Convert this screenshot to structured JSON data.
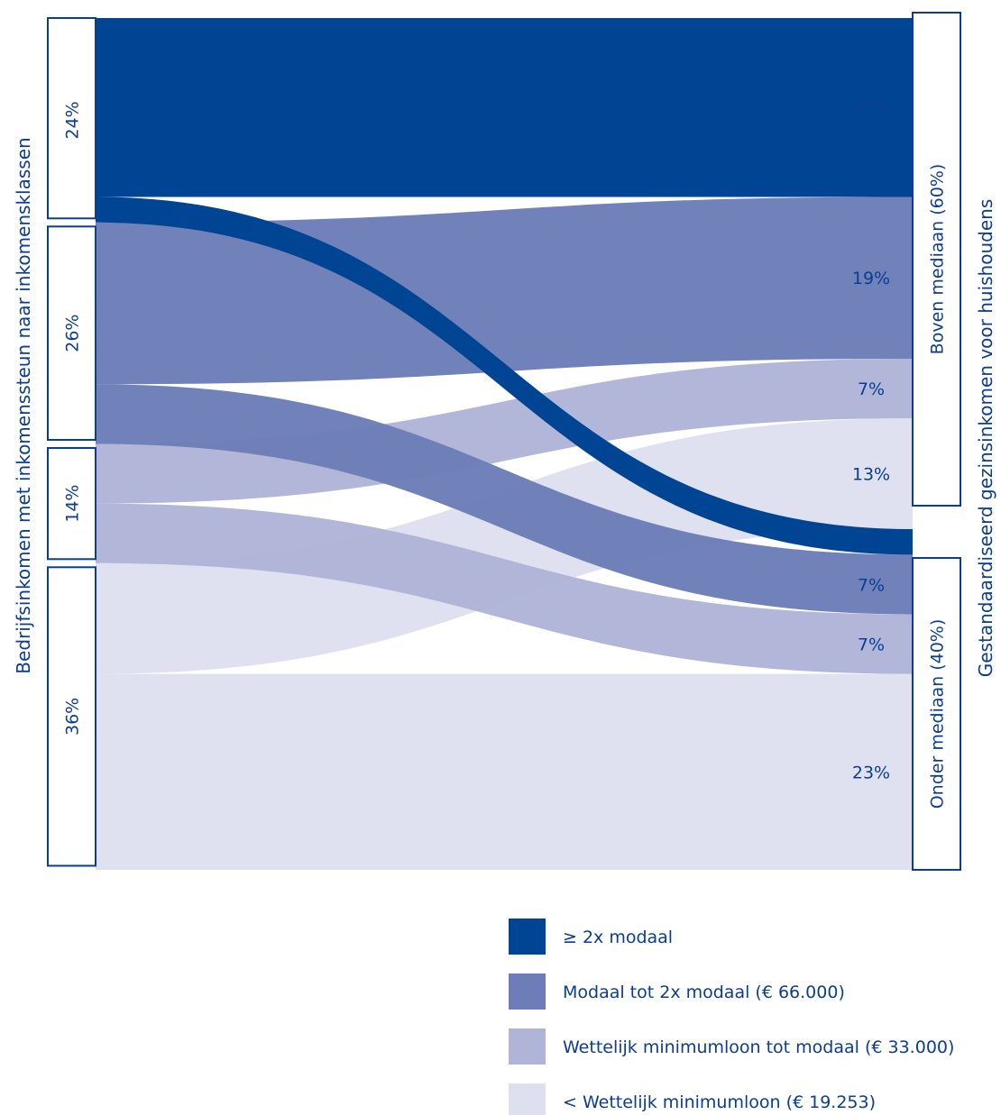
{
  "chart_data": {
    "type": "sankey",
    "left_axis_title": "Bedrijfsinkomen met inkomenssteun naar inkomensklassen",
    "right_axis_title": "Gestandaardiseerd gezinsinkomen voor huishoudens",
    "source_nodes": [
      {
        "id": "s0",
        "label": "24%",
        "value": 24
      },
      {
        "id": "s1",
        "label": "26%",
        "value": 26
      },
      {
        "id": "s2",
        "label": "14%",
        "value": 14
      },
      {
        "id": "s3",
        "label": "36%",
        "value": 36
      }
    ],
    "target_nodes": [
      {
        "id": "t0",
        "label": "Boven mediaan (60%)",
        "value": 60
      },
      {
        "id": "t1",
        "label": "Onder mediaan (40%)",
        "value": 40
      }
    ],
    "flows": [
      {
        "source": 0,
        "target": 0,
        "value": 21,
        "label": "21%",
        "color": "#004494"
      },
      {
        "source": 1,
        "target": 0,
        "value": 19,
        "label": "19%",
        "color": "#6c7db7"
      },
      {
        "source": 2,
        "target": 0,
        "value": 7,
        "label": "7%",
        "color": "#b0b5d8"
      },
      {
        "source": 3,
        "target": 0,
        "value": 13,
        "label": "13%",
        "color": "#dee0ef"
      },
      {
        "source": 0,
        "target": 1,
        "value": 3,
        "label": "3%",
        "color": "#004494"
      },
      {
        "source": 1,
        "target": 1,
        "value": 7,
        "label": "7%",
        "color": "#6c7db7"
      },
      {
        "source": 2,
        "target": 1,
        "value": 7,
        "label": "7%",
        "color": "#b0b5d8"
      },
      {
        "source": 3,
        "target": 1,
        "value": 23,
        "label": "23%",
        "color": "#dee0ef"
      }
    ],
    "legend": [
      {
        "label": "≥ 2x modaal",
        "color": "#004494"
      },
      {
        "label": "Modaal tot 2x modaal (€ 66.000)",
        "color": "#6c7db7"
      },
      {
        "label": "Wettelijk minimumloon tot modaal (€ 33.000)",
        "color": "#b0b5d8"
      },
      {
        "label": "< Wettelijk minimumloon (€ 19.253)",
        "color": "#dee0ef"
      }
    ],
    "legend_position": "bottom-right"
  }
}
